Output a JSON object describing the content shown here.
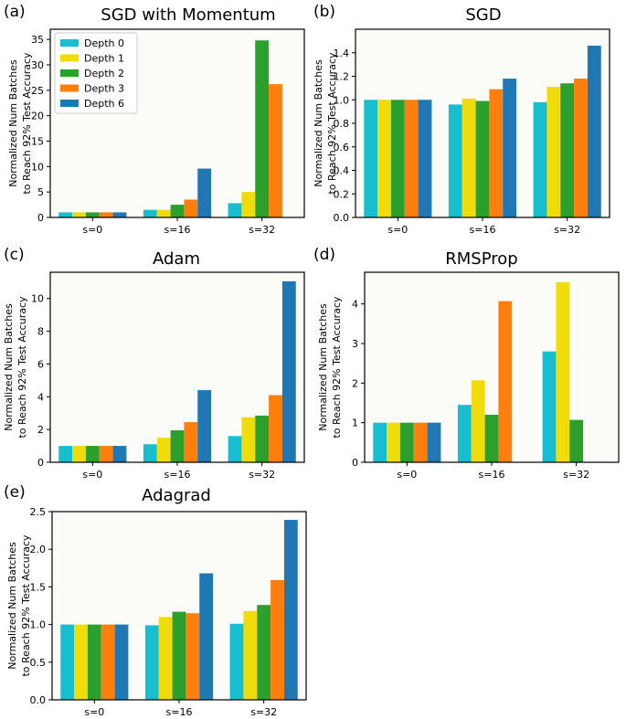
{
  "legend": [
    "Depth 0",
    "Depth 1",
    "Depth 2",
    "Depth 3",
    "Depth 6"
  ],
  "colors": [
    "#17becf",
    "#f0dc0a",
    "#2ca02c",
    "#ff7f0e",
    "#1f77b4"
  ],
  "chart_data": [
    {
      "type": "bar",
      "panel": "(a)",
      "title": "SGD with Momentum",
      "ylabel": [
        "Normalized Num Batches",
        "to Reach 92% Test Accuracy"
      ],
      "categories": [
        "s=0",
        "s=16",
        "s=32"
      ],
      "ylim": [
        0,
        37
      ],
      "yticks": [
        0,
        5,
        10,
        15,
        20,
        25,
        30,
        35
      ],
      "ytick_labels": [
        "0",
        "5",
        "10",
        "15",
        "20",
        "25",
        "30",
        "35"
      ],
      "legend": "upper-left",
      "series": [
        {
          "name": "Depth 0",
          "values": [
            1.0,
            1.5,
            2.8
          ]
        },
        {
          "name": "Depth 1",
          "values": [
            1.0,
            1.5,
            5.0
          ]
        },
        {
          "name": "Depth 2",
          "values": [
            1.0,
            2.5,
            34.8
          ]
        },
        {
          "name": "Depth 3",
          "values": [
            1.0,
            3.5,
            26.2
          ]
        },
        {
          "name": "Depth 6",
          "values": [
            1.0,
            9.6,
            null
          ]
        }
      ]
    },
    {
      "type": "bar",
      "panel": "(b)",
      "title": "SGD",
      "ylabel": [
        "Normalized Num Batches",
        "to Reach 92% Test Accuracy"
      ],
      "categories": [
        "s=0",
        "s=16",
        "s=32"
      ],
      "ylim": [
        0,
        1.6
      ],
      "yticks": [
        0,
        0.2,
        0.4,
        0.6,
        0.8,
        1.0,
        1.2,
        1.4
      ],
      "ytick_labels": [
        "0.0",
        "0.2",
        "0.4",
        "0.6",
        "0.8",
        "1.0",
        "1.2",
        "1.4"
      ],
      "series": [
        {
          "name": "Depth 0",
          "values": [
            1.0,
            0.96,
            0.98
          ]
        },
        {
          "name": "Depth 1",
          "values": [
            1.0,
            1.01,
            1.11
          ]
        },
        {
          "name": "Depth 2",
          "values": [
            1.0,
            0.99,
            1.14
          ]
        },
        {
          "name": "Depth 3",
          "values": [
            1.0,
            1.09,
            1.18
          ]
        },
        {
          "name": "Depth 6",
          "values": [
            1.0,
            1.18,
            1.46
          ]
        }
      ]
    },
    {
      "type": "bar",
      "panel": "(c)",
      "title": "Adam",
      "ylabel": [
        "Normalized Num Batches",
        "to Reach 92% Test Accuracy"
      ],
      "categories": [
        "s=0",
        "s=16",
        "s=32"
      ],
      "ylim": [
        0,
        11.6
      ],
      "yticks": [
        0,
        2,
        4,
        6,
        8,
        10
      ],
      "ytick_labels": [
        "0",
        "2",
        "4",
        "6",
        "8",
        "10"
      ],
      "series": [
        {
          "name": "Depth 0",
          "values": [
            1.0,
            1.1,
            1.6
          ]
        },
        {
          "name": "Depth 1",
          "values": [
            1.0,
            1.5,
            2.75
          ]
        },
        {
          "name": "Depth 2",
          "values": [
            1.0,
            1.95,
            2.85
          ]
        },
        {
          "name": "Depth 3",
          "values": [
            1.0,
            2.45,
            4.1
          ]
        },
        {
          "name": "Depth 6",
          "values": [
            1.0,
            4.4,
            11.05
          ]
        }
      ]
    },
    {
      "type": "bar",
      "panel": "(d)",
      "title": "RMSProp",
      "ylabel": [
        "Normalized Num Batches",
        "to Reach 92% Test Accuracy"
      ],
      "categories": [
        "s=0",
        "s=16",
        "s=32"
      ],
      "ylim": [
        0,
        4.8
      ],
      "yticks": [
        0,
        1,
        2,
        3,
        4
      ],
      "ytick_labels": [
        "0",
        "1",
        "2",
        "3",
        "4"
      ],
      "series": [
        {
          "name": "Depth 0",
          "values": [
            1.0,
            1.45,
            2.8
          ]
        },
        {
          "name": "Depth 1",
          "values": [
            1.0,
            2.07,
            4.55
          ]
        },
        {
          "name": "Depth 2",
          "values": [
            1.0,
            1.2,
            1.07
          ]
        },
        {
          "name": "Depth 3",
          "values": [
            1.0,
            4.07,
            null
          ]
        },
        {
          "name": "Depth 6",
          "values": [
            1.0,
            null,
            null
          ]
        }
      ]
    },
    {
      "type": "bar",
      "panel": "(e)",
      "title": "Adagrad",
      "ylabel": [
        "Normalized Num Batches",
        "to Reach 92% Test Accuracy"
      ],
      "categories": [
        "s=0",
        "s=16",
        "s=32"
      ],
      "ylim": [
        0,
        2.5
      ],
      "yticks": [
        0,
        0.5,
        1.0,
        1.5,
        2.0,
        2.5
      ],
      "ytick_labels": [
        "0.0",
        "0.5",
        "1.0",
        "1.5",
        "2.0",
        "2.5"
      ],
      "series": [
        {
          "name": "Depth 0",
          "values": [
            1.0,
            0.99,
            1.01
          ]
        },
        {
          "name": "Depth 1",
          "values": [
            1.0,
            1.1,
            1.18
          ]
        },
        {
          "name": "Depth 2",
          "values": [
            1.0,
            1.17,
            1.26
          ]
        },
        {
          "name": "Depth 3",
          "values": [
            1.0,
            1.15,
            1.59
          ]
        },
        {
          "name": "Depth 6",
          "values": [
            1.0,
            1.68,
            2.39
          ]
        }
      ]
    }
  ]
}
